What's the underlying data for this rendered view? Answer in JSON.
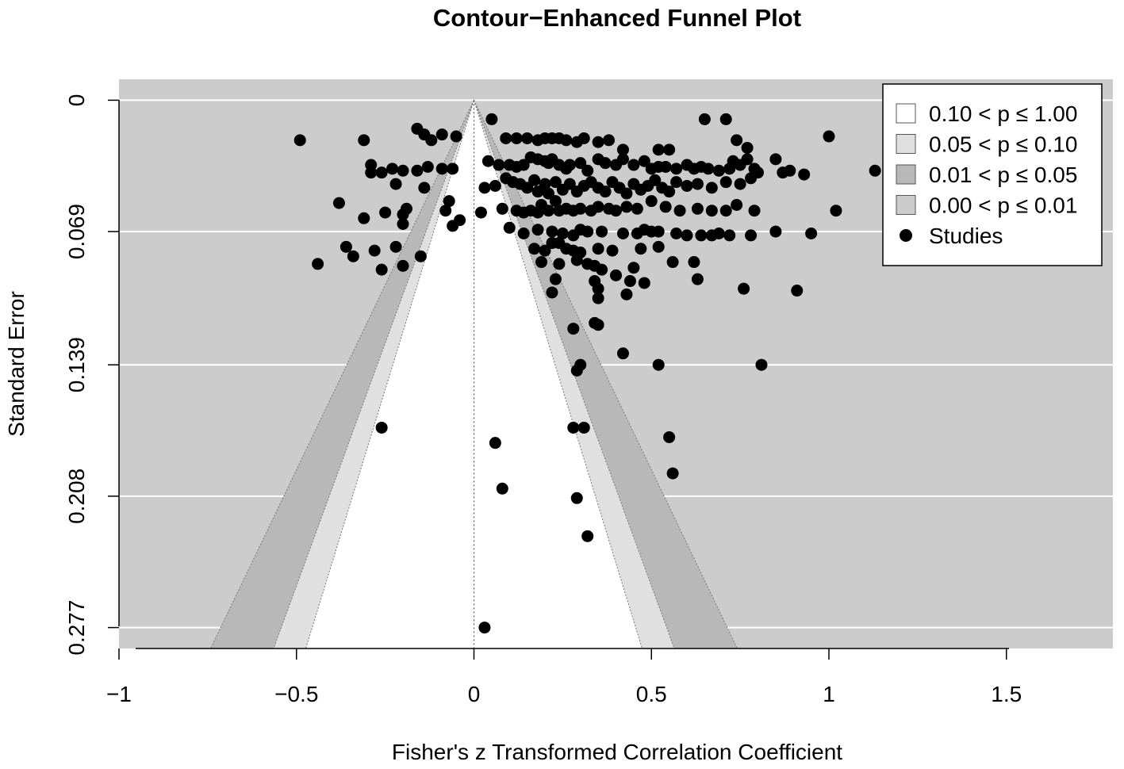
{
  "chart_data": {
    "type": "scatter",
    "title": "Contour−Enhanced Funnel Plot",
    "xlabel": "Fisher's z Transformed Correlation Coefficient",
    "ylabel": "Standard Error",
    "xlim": [
      -1.0,
      1.8
    ],
    "ylim": [
      0.288,
      -0.011
    ],
    "y_reversed": true,
    "x_ticks": [
      -1,
      -0.5,
      0,
      0.5,
      1,
      1.5
    ],
    "x_tick_labels": [
      "−1",
      "−0.5",
      "0",
      "0.5",
      "1",
      "1.5"
    ],
    "y_ticks": [
      0,
      0.069,
      0.139,
      0.208,
      0.277
    ],
    "y_tick_labels": [
      "0",
      "0.069",
      "0.139",
      "0.208",
      "0.277"
    ],
    "grid": "horizontal",
    "center": 0,
    "contours": [
      {
        "label": "0.10 < p ≤ 1.00",
        "z": 1.645,
        "color": "#ffffff"
      },
      {
        "label": "0.05 < p ≤ 0.10",
        "z": 1.96,
        "color": "#e0e0e0"
      },
      {
        "label": "0.01 < p ≤ 0.05",
        "z": 2.576,
        "color": "#b8b8b8"
      },
      {
        "label": "0.00 < p ≤ 0.01",
        "z": null,
        "color": "#cccccc"
      }
    ],
    "legend": {
      "position": "top-right",
      "entries": [
        {
          "label": "0.10 < p ≤ 1.00",
          "color": "#ffffff"
        },
        {
          "label": "0.05 < p ≤ 0.10",
          "color": "#e0e0e0"
        },
        {
          "label": "0.01 < p ≤ 0.05",
          "color": "#b8b8b8"
        },
        {
          "label": "0.00 < p ≤ 0.01",
          "color": "#cccccc"
        },
        {
          "label": "Studies",
          "symbol": "dot"
        }
      ]
    },
    "series": [
      {
        "points": [
          [
            -0.49,
            0.021
          ],
          [
            -0.31,
            0.021
          ],
          [
            -0.16,
            0.015
          ],
          [
            -0.14,
            0.018
          ],
          [
            -0.12,
            0.021
          ],
          [
            -0.09,
            0.018
          ],
          [
            -0.05,
            0.019
          ],
          [
            -0.29,
            0.034
          ],
          [
            -0.29,
            0.038
          ],
          [
            -0.26,
            0.038
          ],
          [
            -0.23,
            0.036
          ],
          [
            -0.2,
            0.037
          ],
          [
            -0.16,
            0.037
          ],
          [
            -0.13,
            0.035
          ],
          [
            -0.09,
            0.036
          ],
          [
            -0.06,
            0.036
          ],
          [
            -0.22,
            0.044
          ],
          [
            -0.14,
            0.046
          ],
          [
            -0.38,
            0.054
          ],
          [
            -0.31,
            0.062
          ],
          [
            -0.25,
            0.059
          ],
          [
            -0.19,
            0.057
          ],
          [
            -0.2,
            0.06
          ],
          [
            -0.08,
            0.058
          ],
          [
            -0.07,
            0.053
          ],
          [
            -0.06,
            0.066
          ],
          [
            -0.04,
            0.063
          ],
          [
            -0.2,
            0.065
          ],
          [
            -0.36,
            0.077
          ],
          [
            -0.34,
            0.082
          ],
          [
            -0.28,
            0.079
          ],
          [
            -0.22,
            0.077
          ],
          [
            -0.44,
            0.086
          ],
          [
            -0.26,
            0.089
          ],
          [
            -0.2,
            0.087
          ],
          [
            -0.15,
            0.082
          ],
          [
            0.05,
            0.01
          ],
          [
            0.09,
            0.02
          ],
          [
            0.12,
            0.02
          ],
          [
            0.15,
            0.02
          ],
          [
            0.18,
            0.021
          ],
          [
            0.2,
            0.02
          ],
          [
            0.22,
            0.02
          ],
          [
            0.24,
            0.02
          ],
          [
            0.26,
            0.021
          ],
          [
            0.29,
            0.022
          ],
          [
            0.31,
            0.02
          ],
          [
            0.35,
            0.022
          ],
          [
            0.38,
            0.021
          ],
          [
            0.42,
            0.026
          ],
          [
            0.52,
            0.026
          ],
          [
            0.55,
            0.026
          ],
          [
            0.65,
            0.01
          ],
          [
            0.71,
            0.01
          ],
          [
            0.74,
            0.021
          ],
          [
            0.77,
            0.025
          ],
          [
            1.0,
            0.019
          ],
          [
            0.04,
            0.032
          ],
          [
            0.07,
            0.034
          ],
          [
            0.1,
            0.034
          ],
          [
            0.12,
            0.035
          ],
          [
            0.14,
            0.034
          ],
          [
            0.16,
            0.03
          ],
          [
            0.18,
            0.031
          ],
          [
            0.2,
            0.032
          ],
          [
            0.21,
            0.033
          ],
          [
            0.22,
            0.031
          ],
          [
            0.24,
            0.034
          ],
          [
            0.26,
            0.036
          ],
          [
            0.27,
            0.034
          ],
          [
            0.3,
            0.033
          ],
          [
            0.32,
            0.037
          ],
          [
            0.35,
            0.031
          ],
          [
            0.37,
            0.033
          ],
          [
            0.4,
            0.034
          ],
          [
            0.42,
            0.031
          ],
          [
            0.45,
            0.034
          ],
          [
            0.48,
            0.032
          ],
          [
            0.5,
            0.036
          ],
          [
            0.52,
            0.035
          ],
          [
            0.54,
            0.035
          ],
          [
            0.57,
            0.036
          ],
          [
            0.6,
            0.034
          ],
          [
            0.62,
            0.036
          ],
          [
            0.64,
            0.035
          ],
          [
            0.66,
            0.036
          ],
          [
            0.69,
            0.037
          ],
          [
            0.72,
            0.036
          ],
          [
            0.73,
            0.032
          ],
          [
            0.75,
            0.034
          ],
          [
            0.77,
            0.031
          ],
          [
            0.79,
            0.036
          ],
          [
            0.8,
            0.038
          ],
          [
            0.85,
            0.031
          ],
          [
            0.87,
            0.038
          ],
          [
            0.89,
            0.037
          ],
          [
            0.93,
            0.039
          ],
          [
            1.13,
            0.037
          ],
          [
            0.03,
            0.046
          ],
          [
            0.06,
            0.045
          ],
          [
            0.09,
            0.041
          ],
          [
            0.11,
            0.043
          ],
          [
            0.13,
            0.044
          ],
          [
            0.15,
            0.046
          ],
          [
            0.17,
            0.042
          ],
          [
            0.18,
            0.048
          ],
          [
            0.2,
            0.044
          ],
          [
            0.21,
            0.049
          ],
          [
            0.23,
            0.043
          ],
          [
            0.25,
            0.047
          ],
          [
            0.27,
            0.044
          ],
          [
            0.29,
            0.048
          ],
          [
            0.31,
            0.045
          ],
          [
            0.33,
            0.043
          ],
          [
            0.35,
            0.046
          ],
          [
            0.37,
            0.048
          ],
          [
            0.39,
            0.043
          ],
          [
            0.41,
            0.046
          ],
          [
            0.43,
            0.049
          ],
          [
            0.45,
            0.044
          ],
          [
            0.47,
            0.047
          ],
          [
            0.49,
            0.045
          ],
          [
            0.51,
            0.042
          ],
          [
            0.53,
            0.046
          ],
          [
            0.55,
            0.048
          ],
          [
            0.57,
            0.043
          ],
          [
            0.6,
            0.045
          ],
          [
            0.63,
            0.044
          ],
          [
            0.67,
            0.046
          ],
          [
            0.71,
            0.043
          ],
          [
            0.75,
            0.044
          ],
          [
            0.78,
            0.041
          ],
          [
            0.02,
            0.059
          ],
          [
            0.08,
            0.057
          ],
          [
            0.12,
            0.058
          ],
          [
            0.14,
            0.059
          ],
          [
            0.16,
            0.058
          ],
          [
            0.18,
            0.059
          ],
          [
            0.19,
            0.055
          ],
          [
            0.21,
            0.058
          ],
          [
            0.23,
            0.053
          ],
          [
            0.24,
            0.058
          ],
          [
            0.26,
            0.057
          ],
          [
            0.28,
            0.058
          ],
          [
            0.3,
            0.057
          ],
          [
            0.33,
            0.058
          ],
          [
            0.35,
            0.056
          ],
          [
            0.38,
            0.057
          ],
          [
            0.4,
            0.058
          ],
          [
            0.43,
            0.056
          ],
          [
            0.46,
            0.057
          ],
          [
            0.5,
            0.053
          ],
          [
            0.54,
            0.056
          ],
          [
            0.58,
            0.058
          ],
          [
            0.63,
            0.057
          ],
          [
            0.67,
            0.058
          ],
          [
            0.71,
            0.058
          ],
          [
            0.74,
            0.055
          ],
          [
            0.79,
            0.058
          ],
          [
            0.1,
            0.067
          ],
          [
            0.14,
            0.07
          ],
          [
            0.18,
            0.068
          ],
          [
            0.22,
            0.069
          ],
          [
            0.25,
            0.07
          ],
          [
            0.28,
            0.071
          ],
          [
            0.3,
            0.068
          ],
          [
            0.32,
            0.069
          ],
          [
            0.36,
            0.069
          ],
          [
            0.42,
            0.07
          ],
          [
            0.46,
            0.07
          ],
          [
            0.48,
            0.068
          ],
          [
            0.5,
            0.069
          ],
          [
            0.52,
            0.069
          ],
          [
            0.57,
            0.07
          ],
          [
            0.6,
            0.071
          ],
          [
            0.64,
            0.071
          ],
          [
            0.67,
            0.071
          ],
          [
            0.69,
            0.07
          ],
          [
            0.72,
            0.071
          ],
          [
            0.78,
            0.071
          ],
          [
            0.85,
            0.069
          ],
          [
            0.95,
            0.07
          ],
          [
            1.02,
            0.058
          ],
          [
            0.17,
            0.078
          ],
          [
            0.2,
            0.079
          ],
          [
            0.22,
            0.075
          ],
          [
            0.24,
            0.075
          ],
          [
            0.26,
            0.078
          ],
          [
            0.28,
            0.079
          ],
          [
            0.3,
            0.08
          ],
          [
            0.35,
            0.078
          ],
          [
            0.39,
            0.079
          ],
          [
            0.47,
            0.078
          ],
          [
            0.52,
            0.077
          ],
          [
            0.19,
            0.085
          ],
          [
            0.24,
            0.086
          ],
          [
            0.29,
            0.084
          ],
          [
            0.32,
            0.086
          ],
          [
            0.34,
            0.087
          ],
          [
            0.36,
            0.089
          ],
          [
            0.4,
            0.092
          ],
          [
            0.45,
            0.088
          ],
          [
            0.56,
            0.085
          ],
          [
            0.62,
            0.085
          ],
          [
            0.23,
            0.094
          ],
          [
            0.34,
            0.095
          ],
          [
            0.44,
            0.095
          ],
          [
            0.48,
            0.096
          ],
          [
            0.63,
            0.094
          ],
          [
            0.22,
            0.101
          ],
          [
            0.35,
            0.099
          ],
          [
            0.43,
            0.102
          ],
          [
            0.76,
            0.099
          ],
          [
            0.91,
            0.1
          ],
          [
            0.35,
            0.104
          ],
          [
            0.34,
            0.117
          ],
          [
            0.28,
            0.12
          ],
          [
            0.35,
            0.118
          ],
          [
            0.42,
            0.133
          ],
          [
            0.52,
            0.139
          ],
          [
            0.81,
            0.139
          ],
          [
            0.3,
            0.139
          ],
          [
            0.29,
            0.142
          ],
          [
            -0.26,
            0.172
          ],
          [
            0.28,
            0.172
          ],
          [
            0.31,
            0.172
          ],
          [
            0.55,
            0.177
          ],
          [
            0.06,
            0.18
          ],
          [
            0.56,
            0.196
          ],
          [
            0.08,
            0.204
          ],
          [
            0.29,
            0.209
          ],
          [
            0.32,
            0.229
          ],
          [
            0.03,
            0.277
          ]
        ]
      }
    ]
  }
}
